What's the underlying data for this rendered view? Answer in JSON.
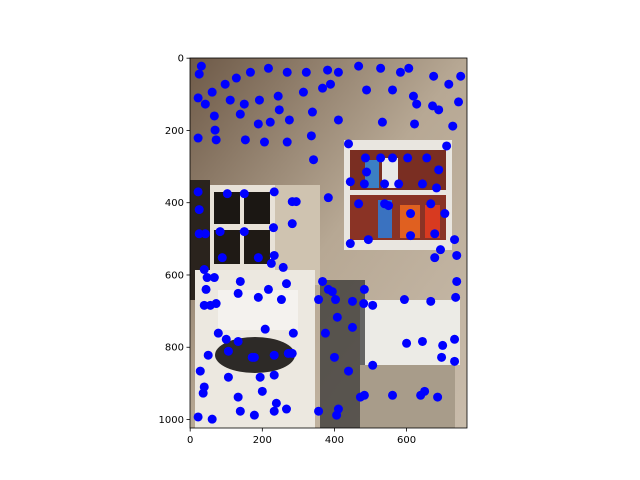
{
  "chart_data": {
    "type": "scatter",
    "color": "#0000ff",
    "xlim": [
      -0.5,
      767.5
    ],
    "ylim": [
      1023.5,
      -0.5
    ],
    "xticks": [
      0,
      200,
      400,
      600
    ],
    "yticks": [
      0,
      200,
      400,
      600,
      800,
      1000
    ],
    "x": [
      31,
      25,
      61,
      97,
      128,
      167,
      217,
      269,
      322,
      381,
      411,
      467,
      528,
      583,
      606,
      22,
      42,
      67,
      111,
      150,
      192,
      244,
      314,
      367,
      389,
      489,
      561,
      619,
      628,
      672,
      689,
      744,
      750,
      717,
      675,
      69,
      139,
      189,
      222,
      247,
      275,
      339,
      411,
      533,
      622,
      728,
      22,
      72,
      153,
      206,
      269,
      336,
      342,
      439,
      711,
      486,
      489,
      528,
      561,
      603,
      656,
      689,
      483,
      444,
      539,
      578,
      644,
      683,
      383,
      22,
      103,
      150,
      233,
      283,
      294,
      467,
      539,
      550,
      611,
      667,
      706,
      25,
      25,
      42,
      83,
      150,
      231,
      283,
      444,
      494,
      611,
      678,
      733,
      694,
      678,
      739,
      89,
      189,
      225,
      258,
      233,
      39,
      47,
      67,
      44,
      39,
      56,
      72,
      139,
      217,
      267,
      133,
      189,
      253,
      367,
      383,
      394,
      483,
      481,
      450,
      739,
      736,
      506,
      594,
      667,
      356,
      403,
      408,
      450,
      375,
      78,
      100,
      106,
      133,
      208,
      233,
      178,
      172,
      272,
      283,
      286,
      50,
      400,
      439,
      506,
      600,
      644,
      700,
      733,
      733,
      697,
      28,
      106,
      194,
      233,
      39,
      36,
      133,
      200,
      267,
      356,
      239,
      22,
      61,
      139,
      178,
      233,
      411,
      406,
      472,
      483,
      561,
      639,
      686,
      650
    ],
    "values": [
      22,
      44,
      94,
      72,
      55,
      39,
      28,
      39,
      39,
      33,
      39,
      22,
      28,
      39,
      28,
      110,
      127,
      160,
      116,
      127,
      116,
      105,
      94,
      83,
      72,
      88,
      88,
      105,
      127,
      132,
      143,
      121,
      50,
      72,
      50,
      199,
      155,
      182,
      177,
      143,
      171,
      149,
      171,
      177,
      182,
      188,
      221,
      226,
      226,
      232,
      232,
      215,
      281,
      237,
      243,
      276,
      315,
      276,
      276,
      276,
      276,
      309,
      348,
      342,
      348,
      348,
      348,
      359,
      386,
      370,
      375,
      375,
      370,
      397,
      397,
      403,
      403,
      408,
      430,
      403,
      430,
      419,
      486,
      486,
      480,
      480,
      469,
      458,
      513,
      502,
      491,
      486,
      502,
      530,
      552,
      546,
      552,
      552,
      568,
      579,
      546,
      585,
      607,
      607,
      640,
      684,
      684,
      679,
      618,
      640,
      624,
      651,
      662,
      668,
      618,
      640,
      646,
      640,
      679,
      673,
      618,
      662,
      684,
      668,
      673,
      668,
      668,
      717,
      745,
      761,
      761,
      778,
      811,
      784,
      750,
      822,
      828,
      828,
      817,
      817,
      761,
      822,
      828,
      866,
      850,
      789,
      784,
      795,
      778,
      839,
      828,
      866,
      883,
      883,
      877,
      910,
      927,
      938,
      922,
      971,
      977,
      955,
      993,
      999,
      977,
      988,
      977,
      971,
      988,
      938,
      933,
      933,
      933,
      938,
      922
    ]
  }
}
